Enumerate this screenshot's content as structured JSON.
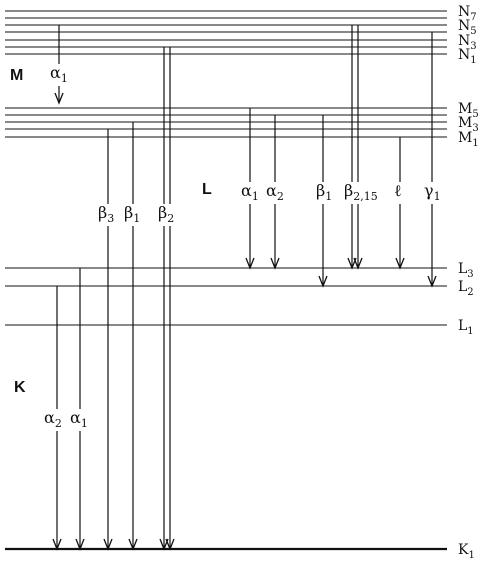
{
  "series_labels": {
    "M": "M",
    "L": "L",
    "K": "K"
  },
  "levels": [
    {
      "id": "N7",
      "label": "N",
      "sub": "7"
    },
    {
      "id": "N6",
      "label": "",
      "sub": ""
    },
    {
      "id": "N5",
      "label": "N",
      "sub": "5"
    },
    {
      "id": "N4",
      "label": "",
      "sub": ""
    },
    {
      "id": "N3",
      "label": "N",
      "sub": "3"
    },
    {
      "id": "N2",
      "label": "",
      "sub": ""
    },
    {
      "id": "N1",
      "label": "N",
      "sub": "1"
    },
    {
      "id": "M5",
      "label": "M",
      "sub": "5"
    },
    {
      "id": "M4",
      "label": "",
      "sub": ""
    },
    {
      "id": "M3",
      "label": "M",
      "sub": "3"
    },
    {
      "id": "M2",
      "label": "",
      "sub": ""
    },
    {
      "id": "M1",
      "label": "M",
      "sub": "1"
    },
    {
      "id": "L3",
      "label": "L",
      "sub": "3"
    },
    {
      "id": "L2",
      "label": "L",
      "sub": "2"
    },
    {
      "id": "L1",
      "label": "L",
      "sub": "1"
    },
    {
      "id": "K1",
      "label": "K",
      "sub": "1"
    }
  ],
  "transitions": [
    {
      "id": "M-alpha1",
      "greek": "α",
      "sub": "1",
      "from": "N5",
      "to": "M5"
    },
    {
      "id": "L-alpha1",
      "greek": "α",
      "sub": "1",
      "from": "M5",
      "to": "L3"
    },
    {
      "id": "L-alpha2",
      "greek": "α",
      "sub": "2",
      "from": "M4",
      "to": "L3"
    },
    {
      "id": "L-beta1",
      "greek": "β",
      "sub": "1",
      "from": "M4",
      "to": "L2"
    },
    {
      "id": "L-beta2-15",
      "greek": "β",
      "sub": "2,15",
      "from": "N5",
      "to": "L3"
    },
    {
      "id": "L-ell",
      "greek": "ℓ",
      "sub": "",
      "from": "M1",
      "to": "L3"
    },
    {
      "id": "L-gamma1",
      "greek": "γ",
      "sub": "1",
      "from": "N4",
      "to": "L2"
    },
    {
      "id": "K-beta3",
      "greek": "β",
      "sub": "3",
      "from": "M2",
      "to": "K1"
    },
    {
      "id": "K-beta1",
      "greek": "β",
      "sub": "1",
      "from": "M3",
      "to": "K1"
    },
    {
      "id": "K-beta2",
      "greek": "β",
      "sub": "2",
      "from": "N2",
      "to": "K1"
    },
    {
      "id": "K-alpha2",
      "greek": "α",
      "sub": "2",
      "from": "L2",
      "to": "K1"
    },
    {
      "id": "K-alpha1",
      "greek": "α",
      "sub": "1",
      "from": "L3",
      "to": "K1"
    }
  ]
}
